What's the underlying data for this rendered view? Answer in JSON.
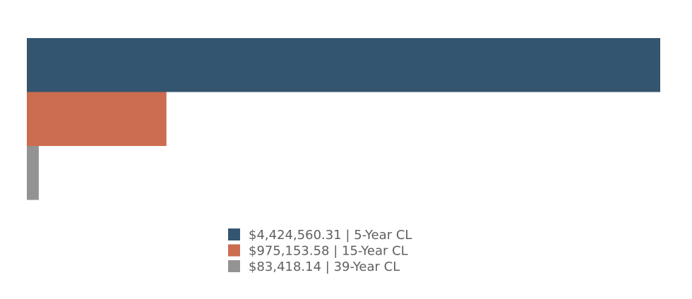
{
  "chart_data": {
    "type": "bar",
    "orientation": "horizontal",
    "categories": [
      "5-Year CL",
      "15-Year CL",
      "39-Year CL"
    ],
    "values": [
      4424560.31,
      975153.58,
      83418.14
    ],
    "xlim": [
      0,
      4424560.31
    ],
    "grid": false,
    "legend_position": "bottom-center",
    "series": [
      {
        "name": "$4,424,560.31 | 5-Year CL",
        "value": 4424560.31,
        "color": "#34556f"
      },
      {
        "name": "$975,153.58 | 15-Year CL",
        "value": 975153.58,
        "color": "#cc6c50"
      },
      {
        "name": "$83,418.14 | 39-Year CL",
        "value": 83418.14,
        "color": "#939393"
      }
    ]
  }
}
